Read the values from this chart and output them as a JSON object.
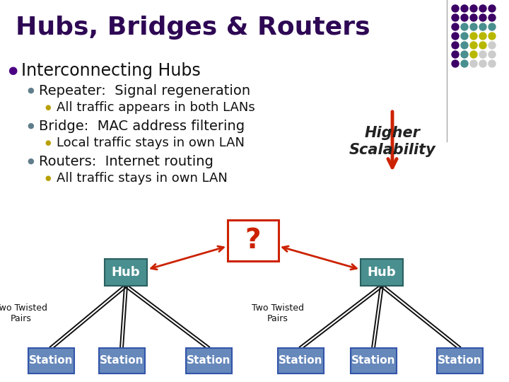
{
  "title": "Hubs, Bridges & Routers",
  "title_color": "#2e0854",
  "title_fontsize": 26,
  "bg_color": "#ffffff",
  "bullet_items": [
    {
      "level": 0,
      "text": "Interconnecting Hubs",
      "bullet_color": "#4b0082",
      "fontsize": 17
    },
    {
      "level": 1,
      "text": "Repeater:  Signal regeneration",
      "bullet_color": "#607d8b",
      "fontsize": 14
    },
    {
      "level": 2,
      "text": "All traffic appears in both LANs",
      "bullet_color": "#b8a000",
      "fontsize": 13
    },
    {
      "level": 1,
      "text": "Bridge:  MAC address filtering",
      "bullet_color": "#607d8b",
      "fontsize": 14
    },
    {
      "level": 2,
      "text": "Local traffic stays in own LAN",
      "bullet_color": "#b8a000",
      "fontsize": 13
    },
    {
      "level": 1,
      "text": "Routers:  Internet routing",
      "bullet_color": "#607d8b",
      "fontsize": 14
    },
    {
      "level": 2,
      "text": "All traffic stays in own LAN",
      "bullet_color": "#b8a000",
      "fontsize": 13
    }
  ],
  "arrow_color": "#cc2200",
  "hub_color": "#4a8f8f",
  "station_color": "#6688bb",
  "question_box_color": "#cc2200",
  "higher_scalability_text": "Higher\nScalability",
  "higher_scalability_fontsize": 15,
  "dot_grid": [
    [
      "#3d0066",
      "#3d0066",
      "#3d0066",
      "#3d0066",
      "#3d0066"
    ],
    [
      "#3d0066",
      "#3d0066",
      "#3d0066",
      "#3d0066",
      "#3d0066"
    ],
    [
      "#3d0066",
      "#4a8f8f",
      "#4a8f8f",
      "#4a8f8f",
      "#4a8f8f"
    ],
    [
      "#3d0066",
      "#4a8f8f",
      "#b8b800",
      "#b8b800",
      "#b8b800"
    ],
    [
      "#3d0066",
      "#4a8f8f",
      "#b8b800",
      "#b8b800",
      "#cccccc"
    ],
    [
      "#3d0066",
      "#4a8f8f",
      "#b8b800",
      "#cccccc",
      "#cccccc"
    ],
    [
      "#3d0066",
      "#4a8f8f",
      "#cccccc",
      "#cccccc",
      "#cccccc"
    ]
  ]
}
